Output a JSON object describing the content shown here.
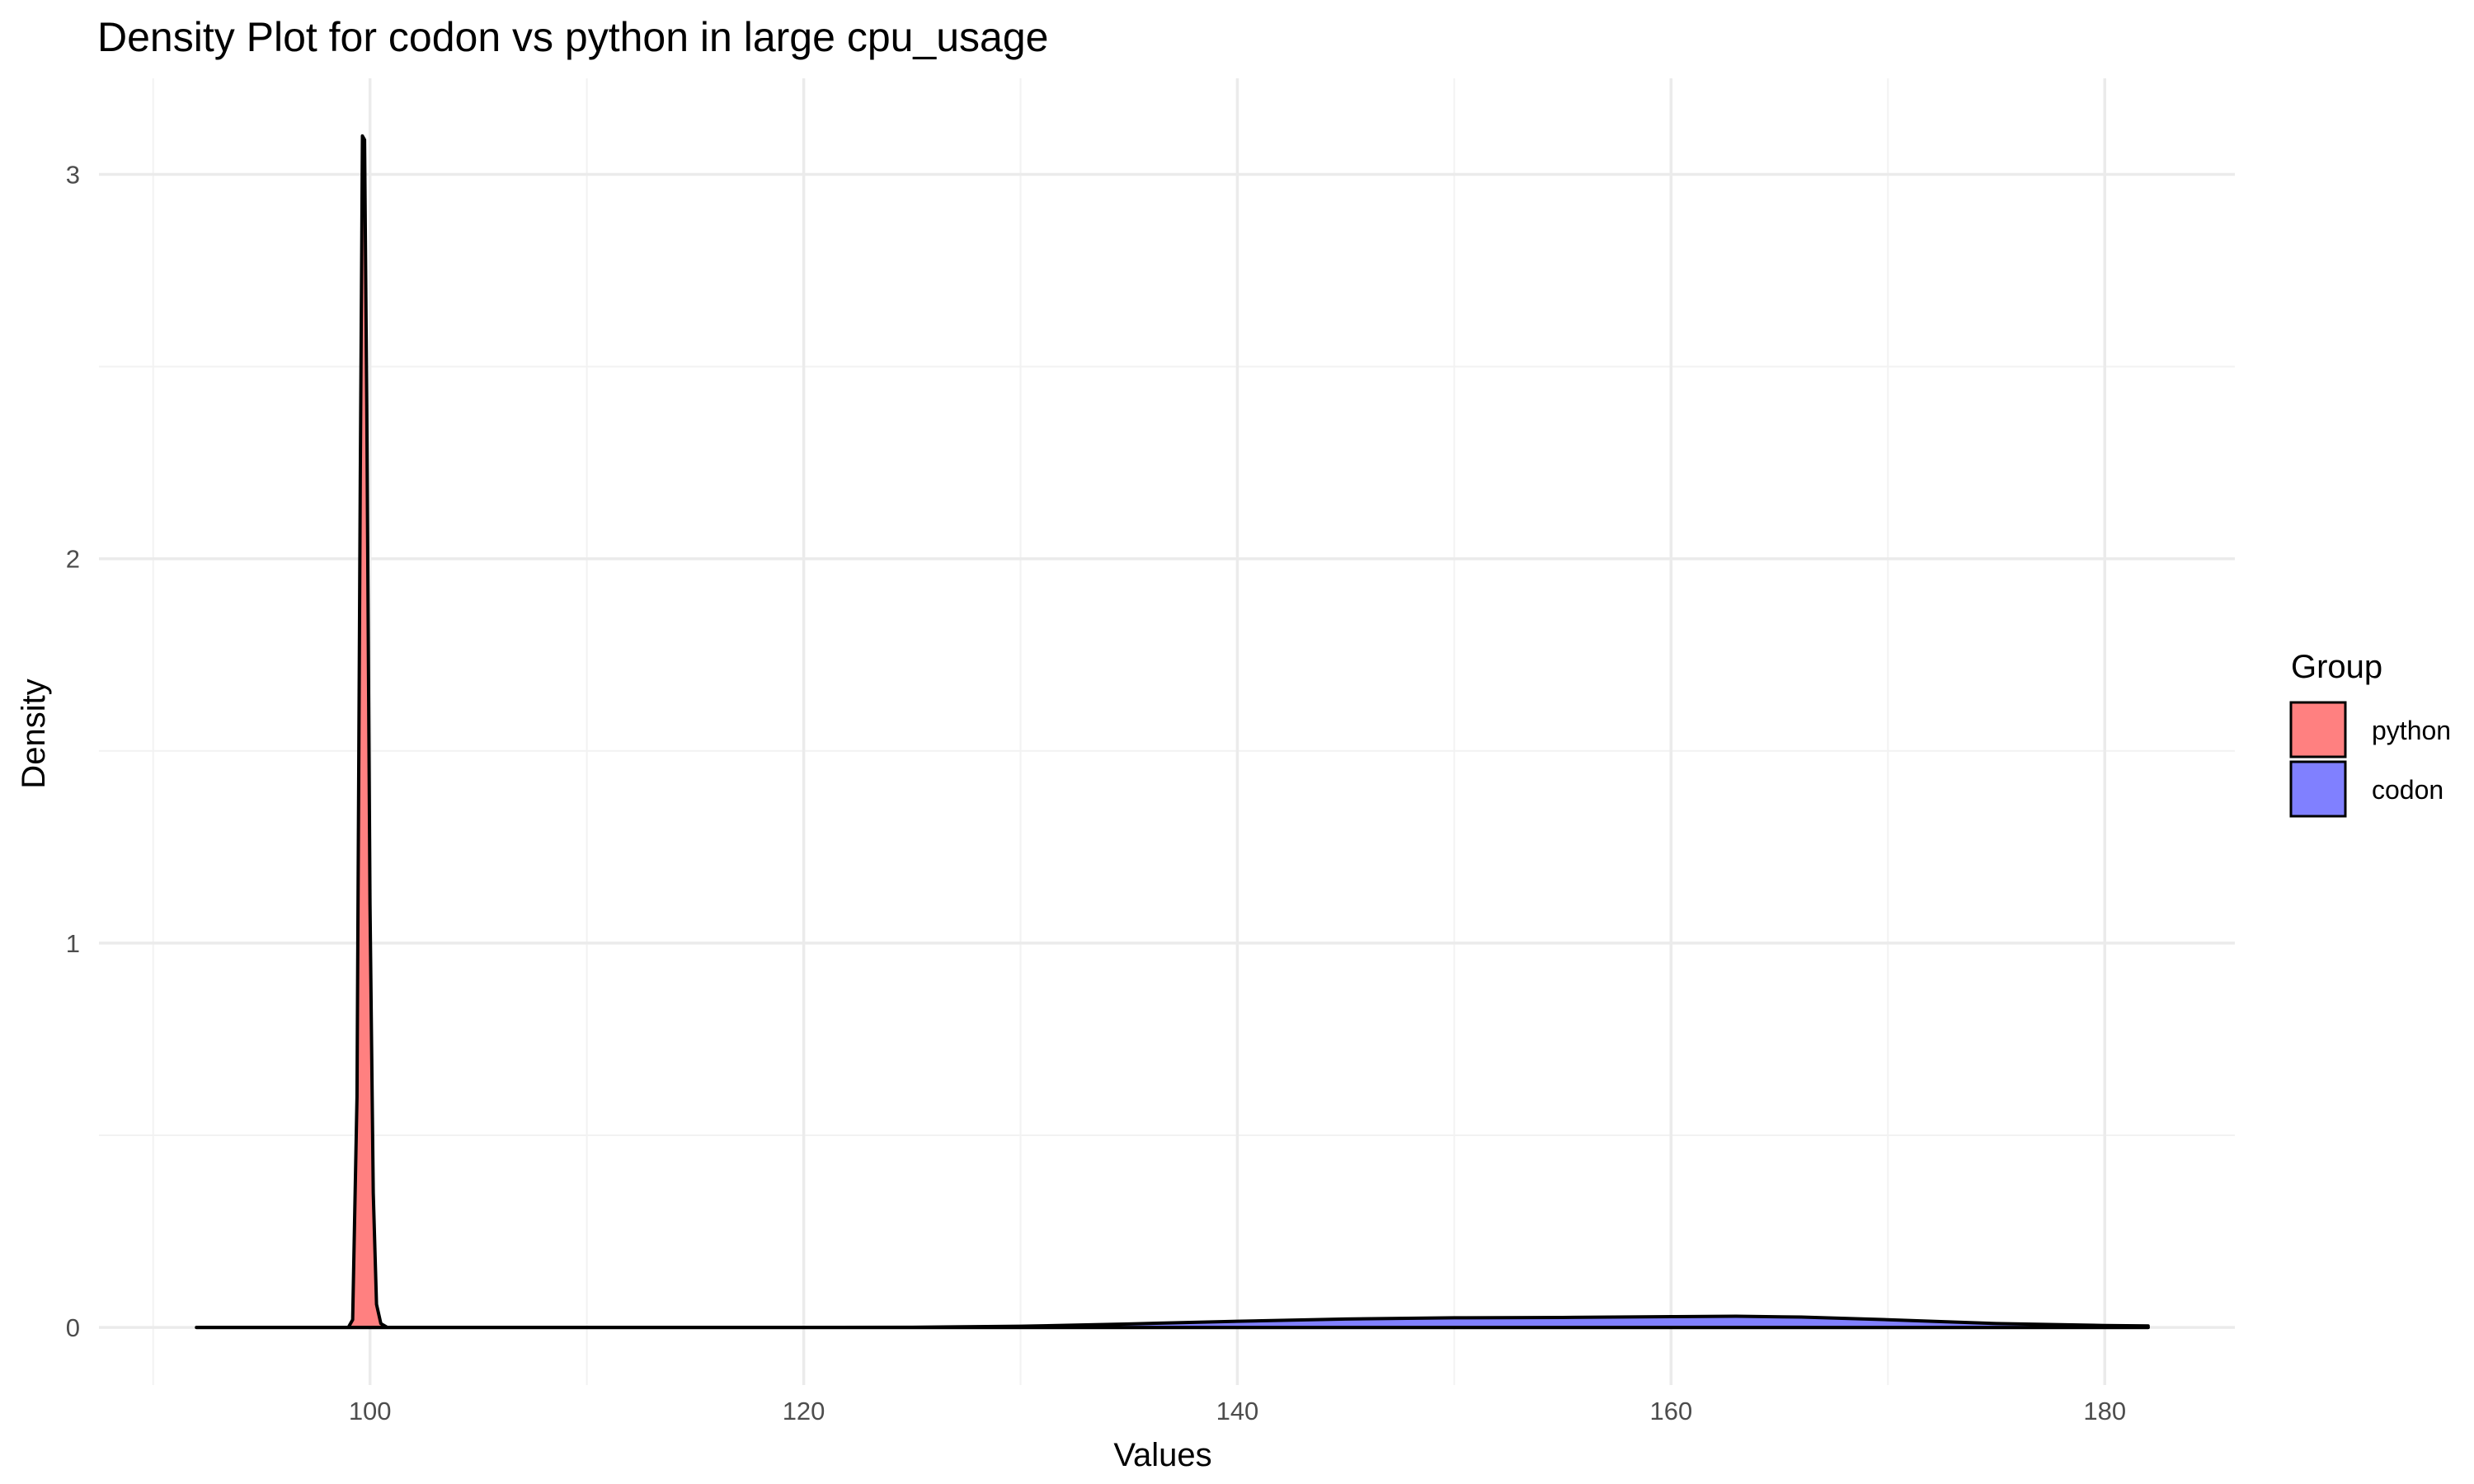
{
  "chart_data": {
    "type": "area",
    "title": "Density Plot for codon vs python in large cpu_usage",
    "xlabel": "Values",
    "ylabel": "Density",
    "xlim": [
      87.5,
      186.0
    ],
    "ylim": [
      -0.15,
      3.25
    ],
    "x_ticks_major": [
      100,
      120,
      140,
      160,
      180
    ],
    "x_ticks_minor": [
      90,
      110,
      130,
      150,
      170
    ],
    "y_ticks_major": [
      0,
      1,
      2,
      3
    ],
    "y_ticks_minor": [
      0.5,
      1.5,
      2.5
    ],
    "grid": true,
    "legend": {
      "title": "Group",
      "position": "right"
    },
    "series": [
      {
        "name": "python",
        "color": "#FF8080",
        "x": [
          92.0,
          99.0,
          99.2,
          99.4,
          99.55,
          99.65,
          99.75,
          99.85,
          100.0,
          100.15,
          100.3,
          100.5,
          100.8,
          182.0
        ],
        "y": [
          0.0,
          0.0,
          0.02,
          0.6,
          2.2,
          3.1,
          3.09,
          2.4,
          1.1,
          0.35,
          0.06,
          0.01,
          0.0,
          0.0
        ]
      },
      {
        "name": "codon",
        "color": "#8080FF",
        "x": [
          92.0,
          120.0,
          125.0,
          130.0,
          135.0,
          140.0,
          145.0,
          150.0,
          155.0,
          160.0,
          163.0,
          166.0,
          170.0,
          175.0,
          180.0,
          182.0
        ],
        "y": [
          0.0,
          0.0,
          0.0005,
          0.003,
          0.009,
          0.016,
          0.022,
          0.025,
          0.026,
          0.028,
          0.029,
          0.027,
          0.02,
          0.01,
          0.005,
          0.004
        ]
      }
    ]
  }
}
